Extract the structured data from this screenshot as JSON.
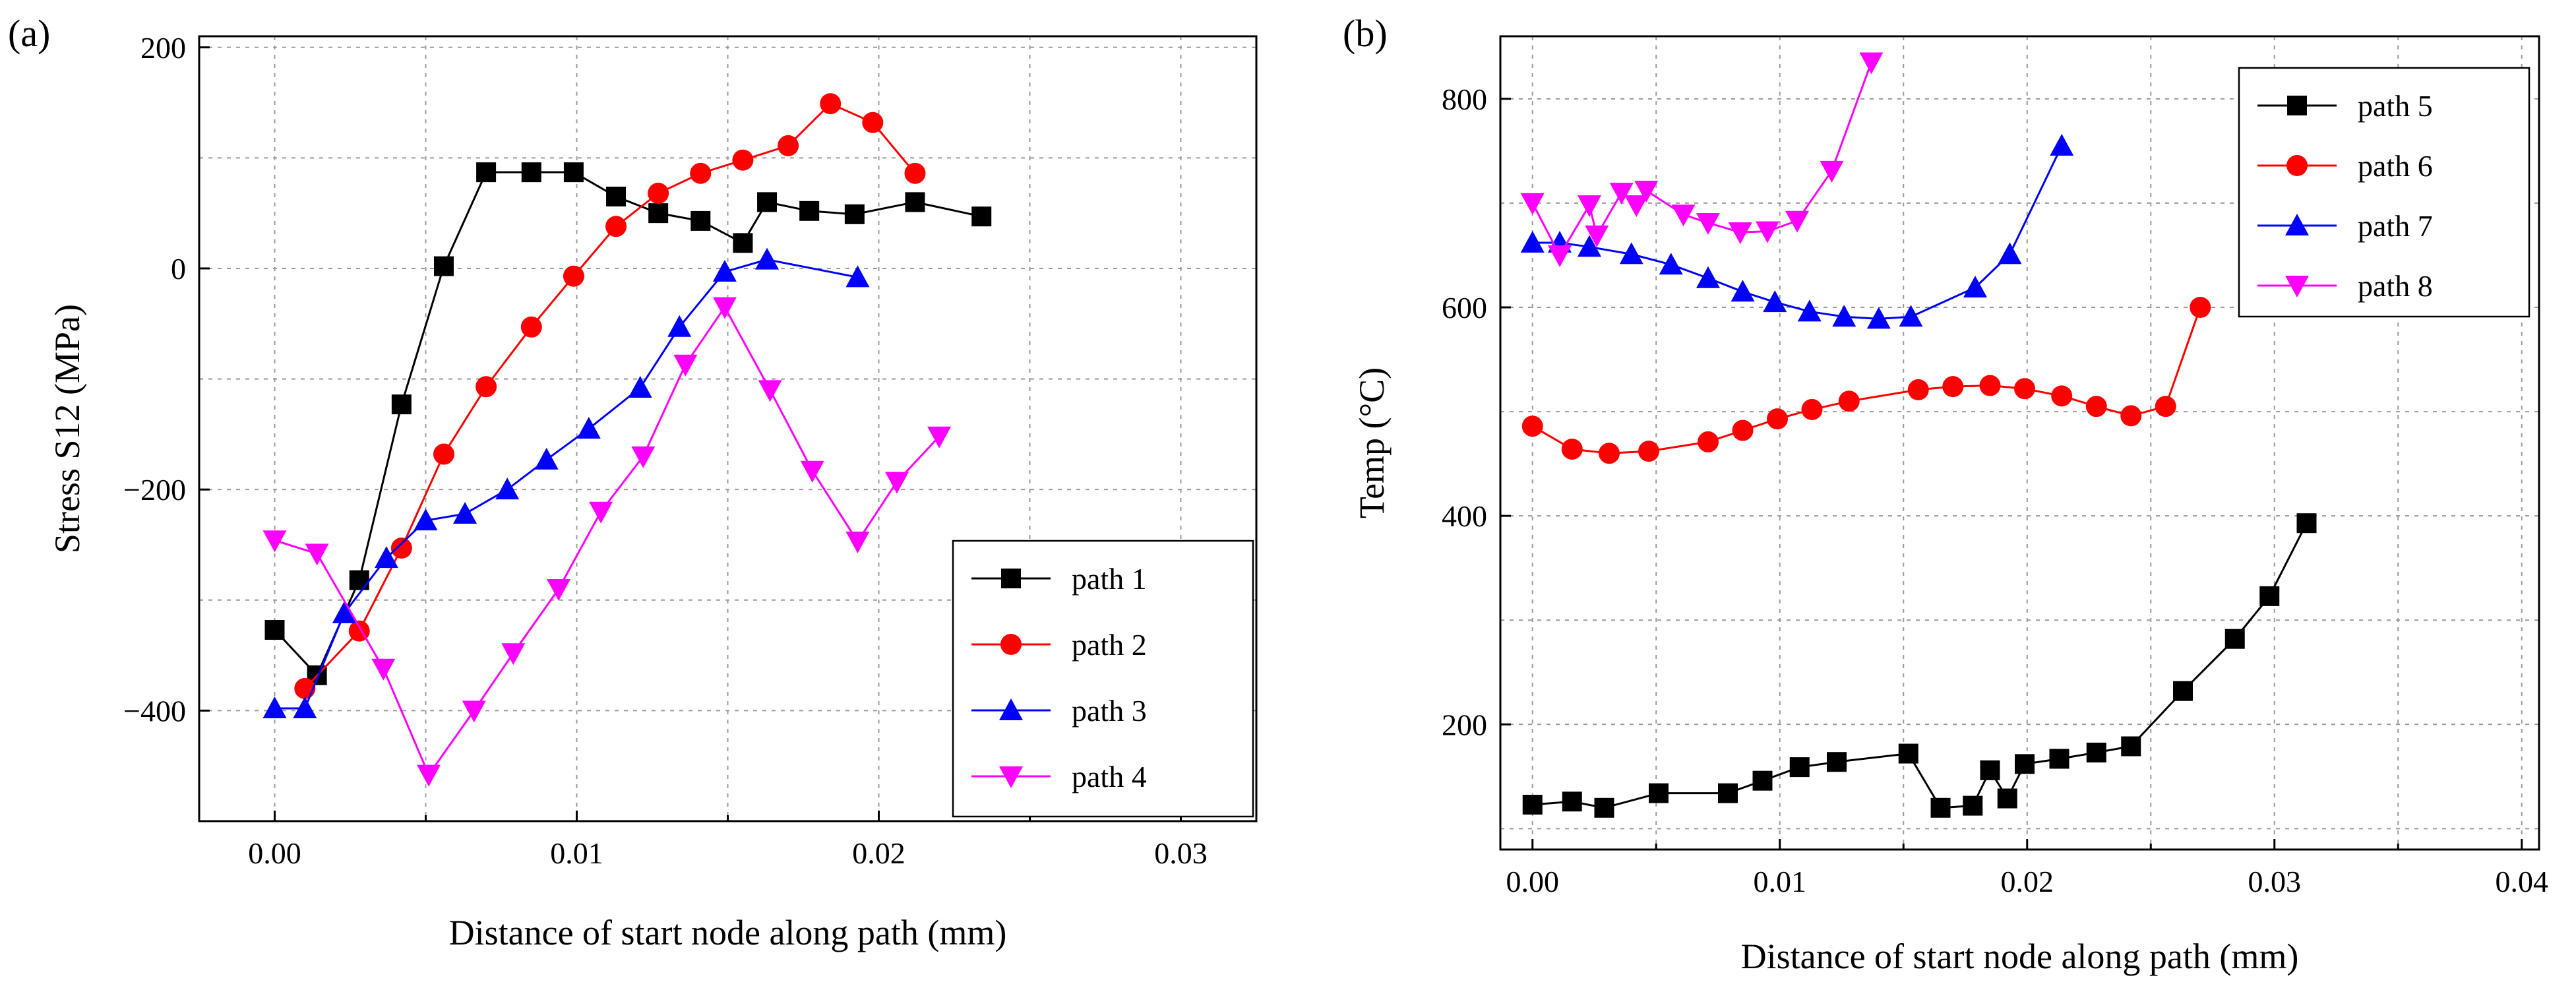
{
  "chart_data": [
    {
      "type": "line",
      "panel_label": "(a)",
      "xlabel": "Distance of start node along path (mm)",
      "ylabel": "Stress S12 (MPa)",
      "xlim": [
        -0.0025,
        0.0325
      ],
      "ylim": [
        -500,
        210
      ],
      "xticks": [
        0.0,
        0.01,
        0.02,
        0.03
      ],
      "xtick_labels": [
        "0.00",
        "0.01",
        "0.02",
        "0.03"
      ],
      "yticks": [
        -400,
        -200,
        0,
        200
      ],
      "ytick_labels": [
        "−400",
        "−200",
        "0",
        "200"
      ],
      "grid": true,
      "legend_position": "bottom-right",
      "series": [
        {
          "name": "path 1",
          "color": "#000000",
          "marker": "square",
          "x": [
            0.0,
            0.0014,
            0.0028,
            0.0042,
            0.0056,
            0.007,
            0.0085,
            0.0099,
            0.0113,
            0.0127,
            0.0141,
            0.0155,
            0.0163,
            0.0177,
            0.0192,
            0.0212,
            0.0234
          ],
          "y": [
            -327,
            -368,
            -282,
            -123,
            2,
            87,
            87,
            87,
            65,
            50,
            43,
            23,
            60,
            52,
            49,
            60,
            47
          ]
        },
        {
          "name": "path 2",
          "color": "#ff0000",
          "marker": "circle",
          "x": [
            0.001,
            0.0028,
            0.0042,
            0.0056,
            0.007,
            0.0085,
            0.0099,
            0.0113,
            0.0127,
            0.0141,
            0.0155,
            0.017,
            0.0184,
            0.0198,
            0.0212
          ],
          "y": [
            -380,
            -328,
            -253,
            -168,
            -107,
            -53,
            -7,
            38,
            68,
            86,
            98,
            111,
            149,
            132,
            86
          ]
        },
        {
          "name": "path 3",
          "color": "#0000ff",
          "marker": "triangle-up",
          "x": [
            0.0,
            0.001,
            0.0023,
            0.0037,
            0.005,
            0.0063,
            0.0077,
            0.009,
            0.0104,
            0.0121,
            0.0134,
            0.0149,
            0.0163,
            0.0193
          ],
          "y": [
            -398,
            -398,
            -312,
            -262,
            -228,
            -222,
            -200,
            -173,
            -145,
            -108,
            -53,
            -3,
            8,
            -8
          ]
        },
        {
          "name": "path 4",
          "color": "#ff00ff",
          "marker": "triangle-down",
          "x": [
            0.0,
            0.0014,
            0.0036,
            0.0051,
            0.0066,
            0.0079,
            0.0094,
            0.0108,
            0.0122,
            0.0136,
            0.0149,
            0.0164,
            0.0178,
            0.0193,
            0.0206,
            0.022
          ],
          "y": [
            -246,
            -258,
            -362,
            -458,
            -400,
            -348,
            -290,
            -220,
            -170,
            -87,
            -35,
            -110,
            -183,
            -247,
            -193,
            -152
          ]
        }
      ]
    },
    {
      "type": "line",
      "panel_label": "(b)",
      "xlabel": "Distance of start node along path (mm)",
      "ylabel": "Temp (°C)",
      "xlim": [
        -0.0013,
        0.0407
      ],
      "ylim": [
        80,
        860
      ],
      "xticks": [
        0.0,
        0.01,
        0.02,
        0.03,
        0.04
      ],
      "xtick_labels": [
        "0.00",
        "0.01",
        "0.02",
        "0.03",
        "0.04"
      ],
      "yticks": [
        200,
        400,
        600,
        800
      ],
      "ytick_labels": [
        "200",
        "400",
        "600",
        "800"
      ],
      "grid": true,
      "legend_position": "top-right",
      "series": [
        {
          "name": "path 5",
          "color": "#000000",
          "marker": "square",
          "x": [
            0.0,
            0.0016,
            0.0029,
            0.0051,
            0.0079,
            0.0093,
            0.0108,
            0.0123,
            0.0152,
            0.0165,
            0.0178,
            0.0185,
            0.0192,
            0.0199,
            0.0213,
            0.0228,
            0.0242,
            0.0263,
            0.0284,
            0.0298,
            0.0313
          ],
          "y": [
            123,
            126,
            120,
            134,
            134,
            146,
            159,
            164,
            172,
            120,
            122,
            156,
            129,
            162,
            167,
            173,
            179,
            232,
            282,
            323,
            393
          ]
        },
        {
          "name": "path 6",
          "color": "#ff0000",
          "marker": "circle",
          "x": [
            0.0,
            0.0016,
            0.0031,
            0.0047,
            0.0071,
            0.0085,
            0.0099,
            0.0113,
            0.0128,
            0.0156,
            0.017,
            0.0185,
            0.0199,
            0.0214,
            0.0228,
            0.0242,
            0.0256,
            0.027
          ],
          "y": [
            486,
            464,
            460,
            462,
            471,
            482,
            493,
            502,
            510,
            521,
            524,
            525,
            522,
            515,
            505,
            496,
            505,
            600
          ]
        },
        {
          "name": "path 7",
          "color": "#0000ff",
          "marker": "triangle-up",
          "x": [
            0.0,
            0.0011,
            0.0023,
            0.004,
            0.0056,
            0.0071,
            0.0085,
            0.0098,
            0.0112,
            0.0126,
            0.014,
            0.0153,
            0.0179,
            0.0193,
            0.0214
          ],
          "y": [
            662,
            662,
            658,
            651,
            641,
            628,
            615,
            605,
            596,
            591,
            589,
            591,
            619,
            651,
            755
          ]
        },
        {
          "name": "path 8",
          "color": "#ff00ff",
          "marker": "triangle-down",
          "x": [
            0.0,
            0.0011,
            0.0023,
            0.0026,
            0.0036,
            0.0042,
            0.0046,
            0.0061,
            0.0071,
            0.0084,
            0.0095,
            0.0107,
            0.0121,
            0.0137
          ],
          "y": [
            700,
            650,
            698,
            669,
            710,
            698,
            712,
            689,
            681,
            672,
            673,
            683,
            731,
            835
          ]
        }
      ]
    }
  ]
}
